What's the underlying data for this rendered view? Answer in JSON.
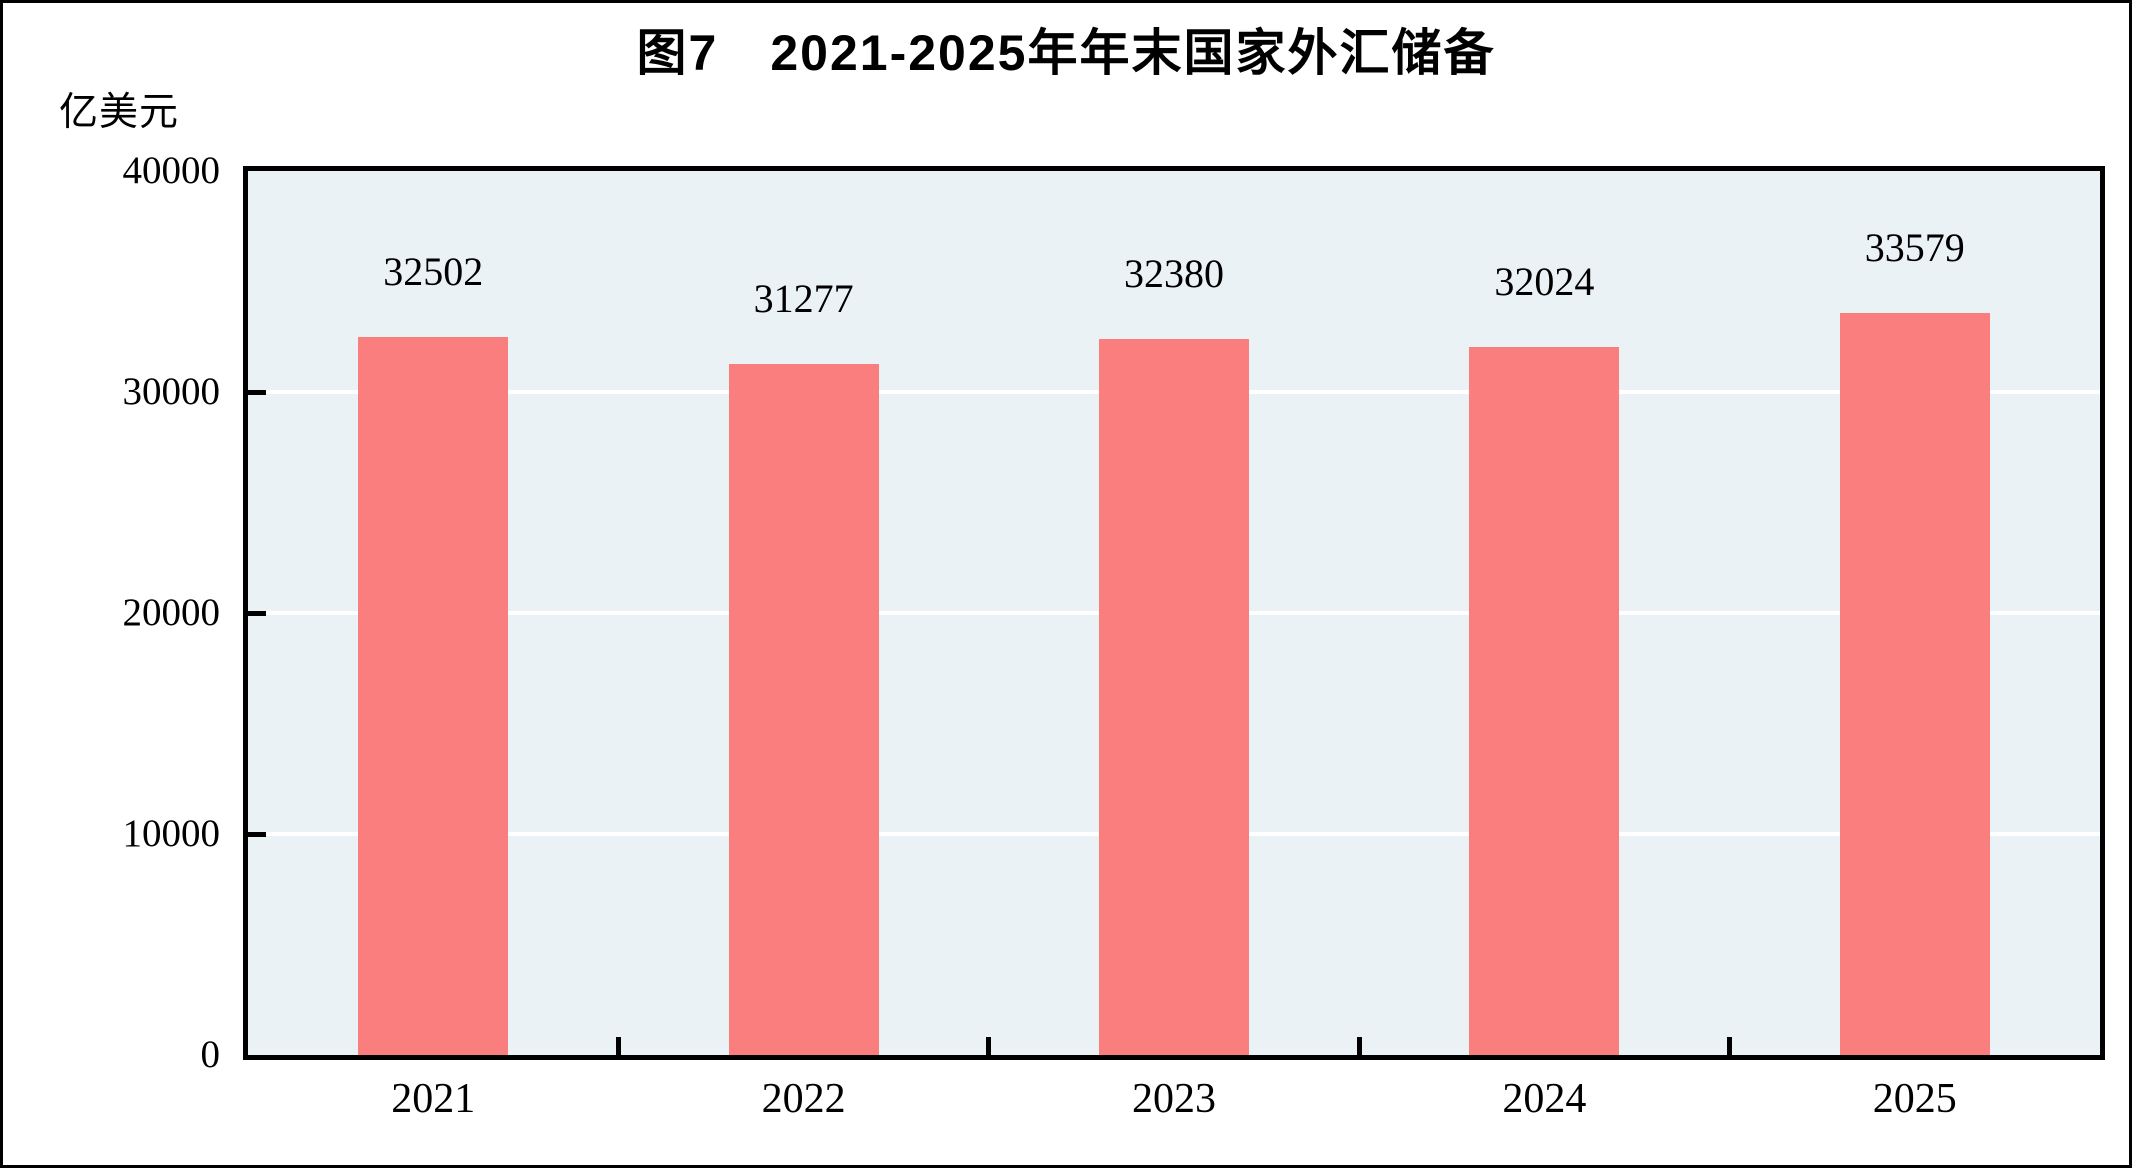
{
  "figure": {
    "title": "图7　2021-2025年年末国家外汇储备",
    "unit_label": "亿美元"
  },
  "colors": {
    "bar": "#FB7E7E",
    "plot_background": "#EBF2F6",
    "gridline": "#FFFFFF",
    "axis": "#000000",
    "text": "#000000",
    "page_background": "#FFFFFF"
  },
  "chart_data": {
    "type": "bar",
    "title": "图7　2021-2025年年末国家外汇储备",
    "ylabel": "亿美元",
    "xlabel": "",
    "categories": [
      "2021",
      "2022",
      "2023",
      "2024",
      "2025"
    ],
    "values": [
      32502,
      31277,
      32380,
      32024,
      33579
    ],
    "ylim": [
      0,
      40000
    ],
    "yticks": [
      0,
      10000,
      20000,
      30000,
      40000
    ],
    "grid": true,
    "legend": false
  }
}
